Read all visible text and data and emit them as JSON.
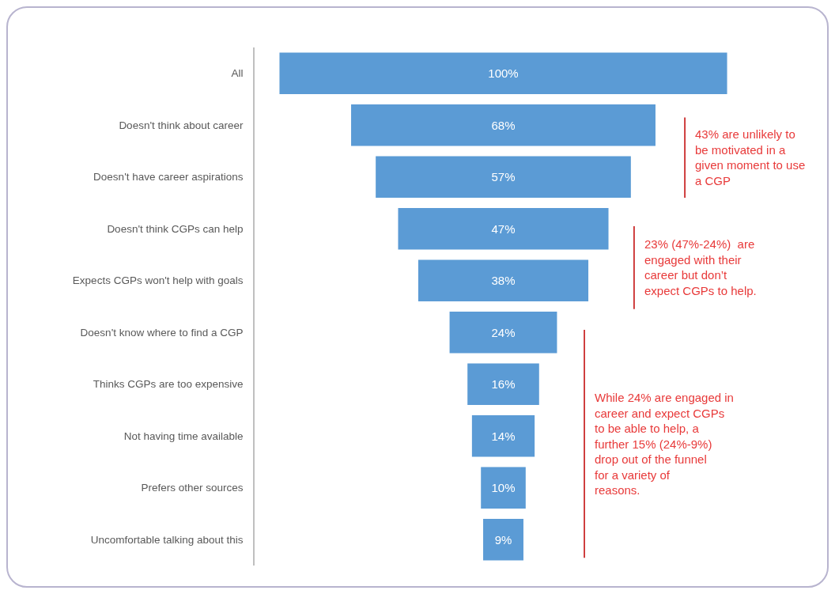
{
  "chart_data": {
    "type": "other",
    "categories": [
      "All",
      "Doesn't think about career",
      "Doesn't have career aspirations",
      "Doesn't think CGPs can help",
      "Expects CGPs won't help with goals",
      "Doesn't know where to find a CGP",
      "Thinks CGPs are too expensive",
      "Not having time available",
      "Prefers other sources",
      "Uncomfortable talking about this"
    ],
    "values": [
      100,
      68,
      57,
      47,
      38,
      24,
      16,
      14,
      10,
      9
    ],
    "value_labels": [
      "100%",
      "68%",
      "57%",
      "47%",
      "38%",
      "24%",
      "16%",
      "14%",
      "10%",
      "9%"
    ],
    "color": "#5b9bd5",
    "annotations": [
      "43% are unlikely to be motivated in a given moment to use a CGP",
      "23% (47%-24%)  are engaged with their career but don’t expect CGPs to help.",
      "While 24% are engaged in career and expect CGPs to be able to help, a further 15% (24%-9%) drop out of the funnel for a variety of reasons."
    ]
  }
}
